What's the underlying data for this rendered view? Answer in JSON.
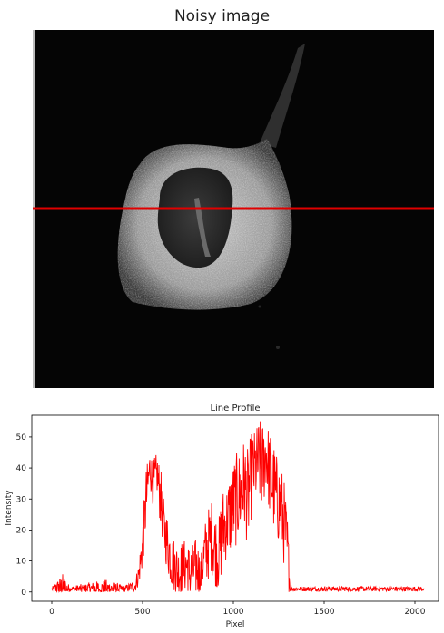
{
  "image_panel": {
    "title": "Noisy image",
    "profile_line_color": "#e00000"
  },
  "chart_data": {
    "type": "line",
    "title": "Line Profile",
    "xlabel": "Pixel",
    "ylabel": "Intensity",
    "xlim": [
      -110,
      2130
    ],
    "ylim": [
      -3,
      57
    ],
    "xticks": [
      0,
      500,
      1000,
      1500,
      2000
    ],
    "yticks": [
      0,
      10,
      20,
      30,
      40,
      50
    ],
    "grid": false,
    "series": [
      {
        "color": "#ff0000",
        "x": [
          0,
          60,
          100,
          200,
          300,
          400,
          460,
          480,
          500,
          520,
          540,
          560,
          580,
          600,
          620,
          640,
          660,
          680,
          700,
          720,
          740,
          760,
          780,
          800,
          820,
          840,
          860,
          880,
          900,
          920,
          940,
          960,
          980,
          1000,
          1020,
          1040,
          1060,
          1080,
          1100,
          1120,
          1140,
          1160,
          1180,
          1200,
          1220,
          1240,
          1260,
          1280,
          1300,
          1310,
          1320,
          1400,
          1500,
          1600,
          1700,
          1800,
          1900,
          2000,
          2050
        ],
        "y": [
          1,
          1,
          1,
          1,
          1,
          1,
          2,
          6,
          15,
          30,
          40,
          35,
          38,
          30,
          20,
          15,
          10,
          8,
          6,
          7,
          9,
          6,
          7,
          8,
          5,
          12,
          15,
          18,
          14,
          12,
          20,
          22,
          25,
          28,
          30,
          32,
          35,
          30,
          38,
          40,
          42,
          40,
          45,
          38,
          34,
          30,
          28,
          22,
          12,
          3,
          1,
          1,
          1,
          1,
          1,
          1,
          1,
          1,
          1
        ],
        "noise_amplitude": [
          0.5,
          5,
          0.8,
          2,
          3,
          1,
          2,
          4,
          8,
          10,
          6,
          8,
          7,
          10,
          8,
          10,
          9,
          9,
          9,
          10,
          8,
          9,
          9,
          10,
          6,
          10,
          12,
          12,
          12,
          12,
          14,
          12,
          14,
          15,
          15,
          15,
          15,
          16,
          14,
          12,
          14,
          15,
          12,
          14,
          15,
          14,
          14,
          14,
          12,
          4,
          0.8,
          0.8,
          0.8,
          0.8,
          0.8,
          0.8,
          0.8,
          0.8,
          0.8
        ]
      }
    ]
  }
}
